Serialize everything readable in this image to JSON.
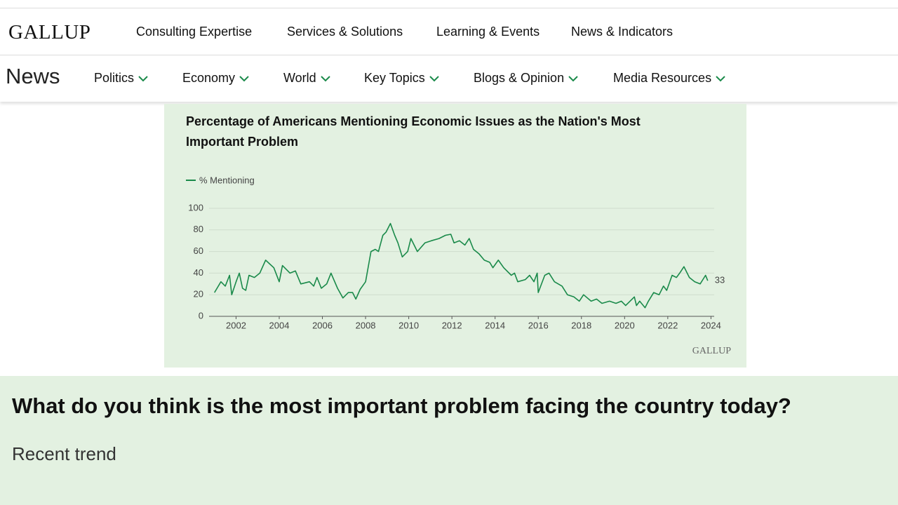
{
  "header": {
    "logo": "GALLUP",
    "nav": [
      "Consulting Expertise",
      "Services & Solutions",
      "Learning & Events",
      "News & Indicators"
    ]
  },
  "subnav": {
    "section": "News",
    "items": [
      "Politics",
      "Economy",
      "World",
      "Key Topics",
      "Blogs & Opinion",
      "Media Resources"
    ]
  },
  "chart_data": {
    "type": "line",
    "title": "Percentage of Americans Mentioning Economic Issues as the Nation's Most Important Problem",
    "source": "GALLUP",
    "x": [
      2001.0,
      2001.3,
      2001.5,
      2001.7,
      2001.8,
      2002.0,
      2002.15,
      2002.3,
      2002.45,
      2002.6,
      2002.85,
      2003.1,
      2003.37,
      2003.75,
      2004.0,
      2004.15,
      2004.5,
      2004.75,
      2005.0,
      2005.4,
      2005.6,
      2005.75,
      2005.95,
      2006.2,
      2006.4,
      2006.7,
      2006.95,
      2007.2,
      2007.4,
      2007.55,
      2007.75,
      2008.0,
      2008.25,
      2008.45,
      2008.6,
      2008.8,
      2008.95,
      2009.15,
      2009.35,
      2009.5,
      2009.7,
      2009.95,
      2010.1,
      2010.4,
      2010.75,
      2011.05,
      2011.4,
      2011.7,
      2011.95,
      2012.1,
      2012.35,
      2012.6,
      2012.8,
      2013.0,
      2013.25,
      2013.5,
      2013.75,
      2013.9,
      2014.15,
      2014.4,
      2014.75,
      2014.9,
      2015.05,
      2015.4,
      2015.6,
      2015.8,
      2015.95,
      2016.0,
      2016.3,
      2016.5,
      2016.75,
      2017.1,
      2017.35,
      2017.65,
      2017.9,
      2018.1,
      2018.45,
      2018.7,
      2018.95,
      2019.3,
      2019.6,
      2019.85,
      2020.05,
      2020.25,
      2020.45,
      2020.55,
      2020.7,
      2020.95,
      2021.1,
      2021.35,
      2021.6,
      2021.8,
      2021.95,
      2022.2,
      2022.4,
      2022.55,
      2022.75,
      2023.0,
      2023.25,
      2023.5,
      2023.75,
      2023.85
    ],
    "series": [
      {
        "name": "% Mentioning",
        "color": "#1a8a4a",
        "values": [
          22,
          32,
          28,
          38,
          20,
          32,
          40,
          26,
          24,
          38,
          36,
          40,
          52,
          45,
          32,
          47,
          40,
          42,
          30,
          32,
          28,
          36,
          26,
          30,
          40,
          26,
          17,
          22,
          22,
          16,
          25,
          32,
          60,
          62,
          60,
          75,
          78,
          86,
          75,
          68,
          55,
          60,
          72,
          60,
          68,
          70,
          72,
          75,
          76,
          68,
          70,
          66,
          72,
          62,
          58,
          52,
          50,
          45,
          52,
          45,
          38,
          40,
          32,
          34,
          38,
          32,
          40,
          22,
          38,
          40,
          32,
          28,
          20,
          18,
          14,
          20,
          14,
          16,
          12,
          14,
          12,
          14,
          10,
          14,
          18,
          10,
          14,
          8,
          14,
          22,
          20,
          28,
          24,
          38,
          36,
          40,
          46,
          36,
          32,
          30,
          38,
          33
        ]
      }
    ],
    "xlim": [
      2000.75,
      2024.15
    ],
    "xticks": [
      2002,
      2004,
      2006,
      2008,
      2010,
      2012,
      2014,
      2016,
      2018,
      2020,
      2022,
      2024
    ],
    "ylim": [
      0,
      100
    ],
    "yticks": [
      0,
      20,
      40,
      60,
      80,
      100
    ],
    "grid": true
  },
  "section": {
    "heading": "What do you think is the most important problem facing the country today?",
    "subheading": "Recent trend"
  }
}
